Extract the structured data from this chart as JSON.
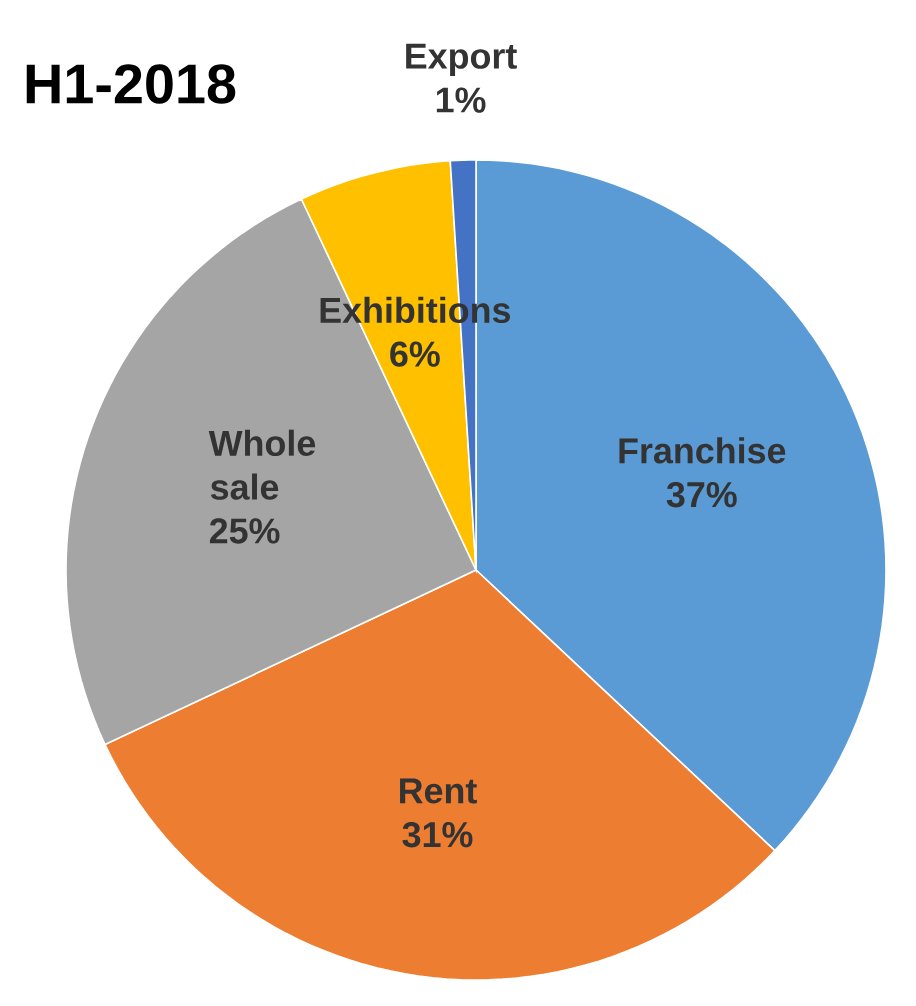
{
  "chart_data": {
    "type": "pie",
    "title": "H1-2018",
    "categories": [
      "Franchise",
      "Rent",
      "Whole sale",
      "Exhibitions",
      "Export"
    ],
    "values": [
      37,
      31,
      25,
      6,
      1
    ],
    "value_labels": [
      "37%",
      "31%",
      "25%",
      "6%",
      "1%"
    ],
    "colors": [
      "#5b9bd5",
      "#ed7d31",
      "#a5a5a5",
      "#ffc000",
      "#4472c4"
    ]
  }
}
